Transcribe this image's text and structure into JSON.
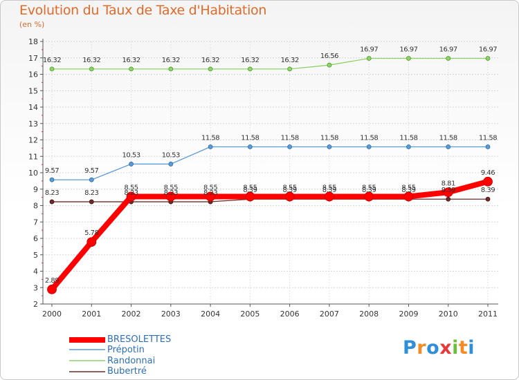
{
  "header": {
    "title": "Evolution du Taux de Taxe d'Habitation",
    "subtitle": "(en %)"
  },
  "chart_data": {
    "type": "line",
    "title": "Evolution du Taux de Taxe d'Habitation",
    "ylabel": "(en %)",
    "xlabel": "",
    "ylim": [
      2,
      18
    ],
    "yticks": [
      2,
      3,
      4,
      5,
      6,
      7,
      8,
      9,
      10,
      11,
      12,
      13,
      14,
      15,
      16,
      17,
      18
    ],
    "categories": [
      "2000",
      "2001",
      "2002",
      "2003",
      "2004",
      "2005",
      "2006",
      "2007",
      "2008",
      "2009",
      "2010",
      "2011"
    ],
    "grid": true,
    "legend_position": "bottom-left",
    "series": [
      {
        "name": "Randonnai",
        "color": "#8fd16a",
        "values": [
          16.32,
          16.32,
          16.32,
          16.32,
          16.32,
          16.32,
          16.32,
          16.56,
          16.97,
          16.97,
          16.97,
          16.97
        ],
        "labels": [
          "16.32",
          "16.32",
          "16.32",
          "16.32",
          "16.32",
          "16.32",
          "16.32",
          "16.56",
          "16.97",
          "16.97",
          "16.97",
          "16.97"
        ]
      },
      {
        "name": "Prépotin",
        "color": "#5b9bd5",
        "values": [
          9.57,
          9.57,
          10.53,
          10.53,
          11.58,
          11.58,
          11.58,
          11.58,
          11.58,
          11.58,
          11.58,
          11.58
        ],
        "labels": [
          "9.57",
          "9.57",
          "10.53",
          "10.53",
          "11.58",
          "11.58",
          "11.58",
          "11.58",
          "11.58",
          "11.58",
          "11.58",
          "11.58"
        ]
      },
      {
        "name": "Bubertré",
        "color": "#6e2a2a",
        "values": [
          8.23,
          8.23,
          8.23,
          8.23,
          8.23,
          8.39,
          8.39,
          8.39,
          8.39,
          8.39,
          8.39,
          8.39
        ],
        "labels": [
          "8.23",
          "8.23",
          "8.23",
          "8.23",
          "8.23",
          "8.39",
          "8.39",
          "8.39",
          "8.39",
          "8.39",
          "8.39",
          "8.39"
        ]
      },
      {
        "name": "BRESOLETTES",
        "color": "#ff0000",
        "values": [
          2.89,
          5.78,
          8.55,
          8.55,
          8.55,
          8.55,
          8.55,
          8.55,
          8.55,
          8.55,
          8.81,
          9.46
        ],
        "labels": [
          "2.89",
          "5.78",
          "8.55",
          "8.55",
          "8.55",
          "8.55",
          "8.55",
          "8.55",
          "8.55",
          "8.55",
          "8.81",
          "9.46"
        ]
      }
    ]
  },
  "legend": {
    "items": [
      {
        "label": "BRESOLETTES",
        "color": "#ff0000"
      },
      {
        "label": "Prépotin",
        "color": "#5b9bd5"
      },
      {
        "label": "Randonnai",
        "color": "#8fd16a"
      },
      {
        "label": "Bubertré",
        "color": "#6e2a2a"
      }
    ]
  },
  "logo": {
    "text": "Proxiti",
    "letters": [
      "P",
      "r",
      "o",
      "x",
      "i",
      "t",
      "i"
    ],
    "colors": [
      "#2f8fd8",
      "#f28c28",
      "#2f8fd8",
      "#e63a3a",
      "#6cbf3c",
      "#f28c28",
      "#2f8fd8"
    ]
  }
}
